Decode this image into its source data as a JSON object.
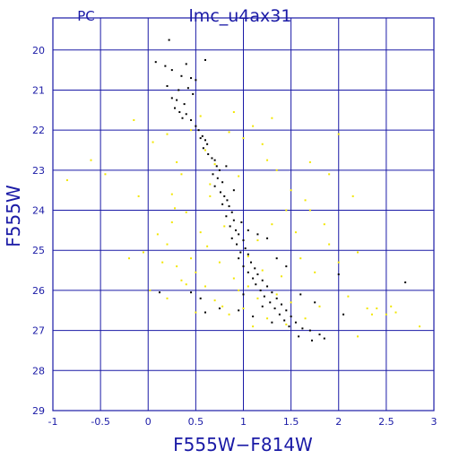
{
  "chart_data": {
    "type": "scatter",
    "title": "lmc_u4ax31",
    "corner_label": "PC",
    "xlabel": "F555W−F814W",
    "ylabel": "F555W",
    "xlim": [
      -1,
      3
    ],
    "ylim": [
      29,
      19.2
    ],
    "y_inverted": true,
    "grid": true,
    "x_ticks": [
      -1,
      -0.5,
      0,
      0.5,
      1,
      1.5,
      2,
      2.5,
      3
    ],
    "x_tick_labels": [
      "-1",
      "-0.5",
      "0",
      "0.5",
      "1",
      "1.5",
      "2",
      "2.5",
      "3"
    ],
    "y_ticks": [
      20,
      21,
      22,
      23,
      24,
      25,
      26,
      27,
      28,
      29
    ],
    "y_tick_labels": [
      "20",
      "21",
      "22",
      "23",
      "24",
      "25",
      "26",
      "27",
      "28",
      "29"
    ],
    "colors": {
      "frame": "#1a1aa6",
      "grid": "#1a1aa6",
      "text": "#1a1aa6"
    },
    "series": [
      {
        "color": "#000000",
        "points": [
          [
            0.22,
            19.75
          ],
          [
            0.08,
            20.3
          ],
          [
            0.18,
            20.4
          ],
          [
            0.25,
            20.5
          ],
          [
            0.4,
            20.35
          ],
          [
            0.6,
            20.25
          ],
          [
            0.35,
            20.65
          ],
          [
            0.45,
            20.7
          ],
          [
            0.5,
            20.75
          ],
          [
            0.42,
            20.95
          ],
          [
            0.2,
            20.9
          ],
          [
            0.32,
            21.0
          ],
          [
            0.47,
            21.1
          ],
          [
            0.3,
            21.25
          ],
          [
            0.38,
            21.35
          ],
          [
            0.28,
            21.45
          ],
          [
            0.33,
            21.55
          ],
          [
            0.4,
            21.6
          ],
          [
            0.36,
            21.7
          ],
          [
            0.45,
            21.75
          ],
          [
            0.5,
            21.9
          ],
          [
            0.53,
            22.0
          ],
          [
            0.57,
            22.15
          ],
          [
            0.6,
            22.25
          ],
          [
            0.62,
            22.35
          ],
          [
            0.58,
            22.45
          ],
          [
            0.63,
            22.6
          ],
          [
            0.67,
            22.7
          ],
          [
            0.7,
            22.75
          ],
          [
            0.72,
            22.9
          ],
          [
            0.75,
            23.0
          ],
          [
            0.68,
            23.1
          ],
          [
            0.73,
            23.2
          ],
          [
            0.78,
            23.3
          ],
          [
            0.7,
            23.4
          ],
          [
            0.76,
            23.55
          ],
          [
            0.8,
            23.65
          ],
          [
            0.83,
            23.75
          ],
          [
            0.78,
            23.85
          ],
          [
            0.85,
            23.9
          ],
          [
            0.88,
            24.05
          ],
          [
            0.82,
            24.15
          ],
          [
            0.9,
            24.25
          ],
          [
            0.86,
            24.4
          ],
          [
            0.92,
            24.5
          ],
          [
            0.95,
            24.6
          ],
          [
            0.88,
            24.7
          ],
          [
            1.0,
            24.75
          ],
          [
            0.93,
            24.85
          ],
          [
            1.02,
            24.95
          ],
          [
            0.97,
            25.05
          ],
          [
            1.05,
            25.1
          ],
          [
            0.95,
            25.2
          ],
          [
            1.08,
            25.3
          ],
          [
            1.0,
            25.4
          ],
          [
            1.12,
            25.45
          ],
          [
            1.05,
            25.55
          ],
          [
            1.15,
            25.6
          ],
          [
            1.1,
            25.7
          ],
          [
            1.2,
            25.75
          ],
          [
            1.13,
            25.85
          ],
          [
            1.25,
            25.9
          ],
          [
            1.18,
            26.0
          ],
          [
            1.3,
            26.05
          ],
          [
            1.22,
            26.15
          ],
          [
            1.35,
            26.2
          ],
          [
            1.28,
            26.3
          ],
          [
            1.4,
            26.35
          ],
          [
            1.33,
            26.45
          ],
          [
            1.45,
            26.5
          ],
          [
            1.38,
            26.6
          ],
          [
            1.5,
            26.65
          ],
          [
            1.43,
            26.75
          ],
          [
            1.55,
            26.8
          ],
          [
            1.48,
            26.9
          ],
          [
            1.62,
            26.95
          ],
          [
            1.7,
            27.0
          ],
          [
            1.8,
            27.1
          ],
          [
            1.72,
            27.25
          ],
          [
            1.85,
            27.2
          ],
          [
            1.58,
            27.15
          ],
          [
            1.3,
            26.8
          ],
          [
            1.1,
            26.65
          ],
          [
            0.95,
            26.5
          ],
          [
            0.55,
            26.2
          ],
          [
            0.45,
            26.05
          ],
          [
            0.12,
            26.05
          ],
          [
            0.6,
            26.55
          ],
          [
            0.75,
            26.45
          ],
          [
            1.15,
            24.6
          ],
          [
            1.25,
            24.7
          ],
          [
            1.05,
            24.5
          ],
          [
            1.35,
            25.2
          ],
          [
            1.45,
            25.4
          ],
          [
            1.0,
            26.1
          ],
          [
            1.2,
            26.4
          ],
          [
            1.6,
            26.1
          ],
          [
            1.75,
            26.3
          ],
          [
            2.0,
            25.6
          ],
          [
            2.7,
            25.8
          ],
          [
            2.05,
            26.6
          ],
          [
            0.98,
            24.3
          ],
          [
            0.9,
            23.5
          ],
          [
            0.82,
            22.9
          ],
          [
            0.55,
            22.2
          ],
          [
            0.25,
            21.2
          ]
        ]
      },
      {
        "color": "#f2e600",
        "points": [
          [
            -0.85,
            23.25
          ],
          [
            -0.45,
            23.1
          ],
          [
            -0.6,
            22.75
          ],
          [
            -0.15,
            21.75
          ],
          [
            0.05,
            22.3
          ],
          [
            -0.2,
            25.2
          ],
          [
            -0.05,
            25.05
          ],
          [
            0.02,
            26.0
          ],
          [
            0.1,
            24.6
          ],
          [
            0.2,
            24.85
          ],
          [
            0.25,
            24.3
          ],
          [
            0.3,
            25.4
          ],
          [
            0.35,
            25.75
          ],
          [
            0.4,
            24.05
          ],
          [
            0.45,
            25.2
          ],
          [
            0.5,
            25.55
          ],
          [
            0.55,
            24.55
          ],
          [
            0.6,
            25.9
          ],
          [
            0.62,
            24.9
          ],
          [
            0.7,
            26.25
          ],
          [
            0.75,
            25.3
          ],
          [
            0.8,
            24.4
          ],
          [
            0.85,
            26.6
          ],
          [
            0.9,
            25.7
          ],
          [
            0.95,
            26.0
          ],
          [
            1.0,
            26.45
          ],
          [
            1.05,
            25.9
          ],
          [
            1.1,
            26.9
          ],
          [
            1.15,
            26.2
          ],
          [
            1.2,
            25.5
          ],
          [
            1.25,
            26.7
          ],
          [
            1.3,
            24.35
          ],
          [
            1.35,
            26.1
          ],
          [
            1.4,
            25.65
          ],
          [
            1.45,
            26.85
          ],
          [
            1.5,
            26.3
          ],
          [
            1.55,
            24.55
          ],
          [
            1.6,
            25.2
          ],
          [
            1.65,
            26.7
          ],
          [
            1.7,
            24.0
          ],
          [
            1.75,
            25.55
          ],
          [
            1.8,
            26.4
          ],
          [
            1.9,
            24.85
          ],
          [
            2.0,
            25.3
          ],
          [
            2.1,
            26.15
          ],
          [
            2.15,
            23.65
          ],
          [
            2.2,
            25.05
          ],
          [
            2.3,
            26.45
          ],
          [
            2.35,
            26.6
          ],
          [
            2.4,
            26.45
          ],
          [
            2.5,
            26.6
          ],
          [
            2.6,
            26.55
          ],
          [
            2.85,
            26.9
          ],
          [
            2.2,
            27.15
          ],
          [
            0.3,
            22.8
          ],
          [
            0.35,
            23.1
          ],
          [
            0.45,
            22.0
          ],
          [
            0.55,
            21.65
          ],
          [
            0.6,
            22.5
          ],
          [
            0.65,
            23.35
          ],
          [
            0.7,
            22.85
          ],
          [
            0.85,
            22.05
          ],
          [
            0.9,
            21.55
          ],
          [
            1.0,
            22.2
          ],
          [
            1.1,
            21.9
          ],
          [
            1.2,
            22.35
          ],
          [
            1.25,
            22.75
          ],
          [
            1.3,
            21.7
          ],
          [
            1.35,
            23.0
          ],
          [
            1.45,
            24.0
          ],
          [
            1.5,
            23.5
          ],
          [
            1.65,
            23.75
          ],
          [
            1.7,
            22.8
          ],
          [
            2.0,
            22.1
          ],
          [
            1.9,
            23.1
          ],
          [
            0.25,
            23.6
          ],
          [
            0.2,
            22.1
          ],
          [
            -0.1,
            23.65
          ],
          [
            0.15,
            25.3
          ],
          [
            0.2,
            26.2
          ],
          [
            0.5,
            26.55
          ],
          [
            0.78,
            26.4
          ],
          [
            1.05,
            25.15
          ],
          [
            0.65,
            23.65
          ],
          [
            0.95,
            23.15
          ],
          [
            1.15,
            24.75
          ],
          [
            0.28,
            23.95
          ],
          [
            0.4,
            25.85
          ],
          [
            1.85,
            24.35
          ],
          [
            2.55,
            26.4
          ]
        ]
      }
    ]
  }
}
